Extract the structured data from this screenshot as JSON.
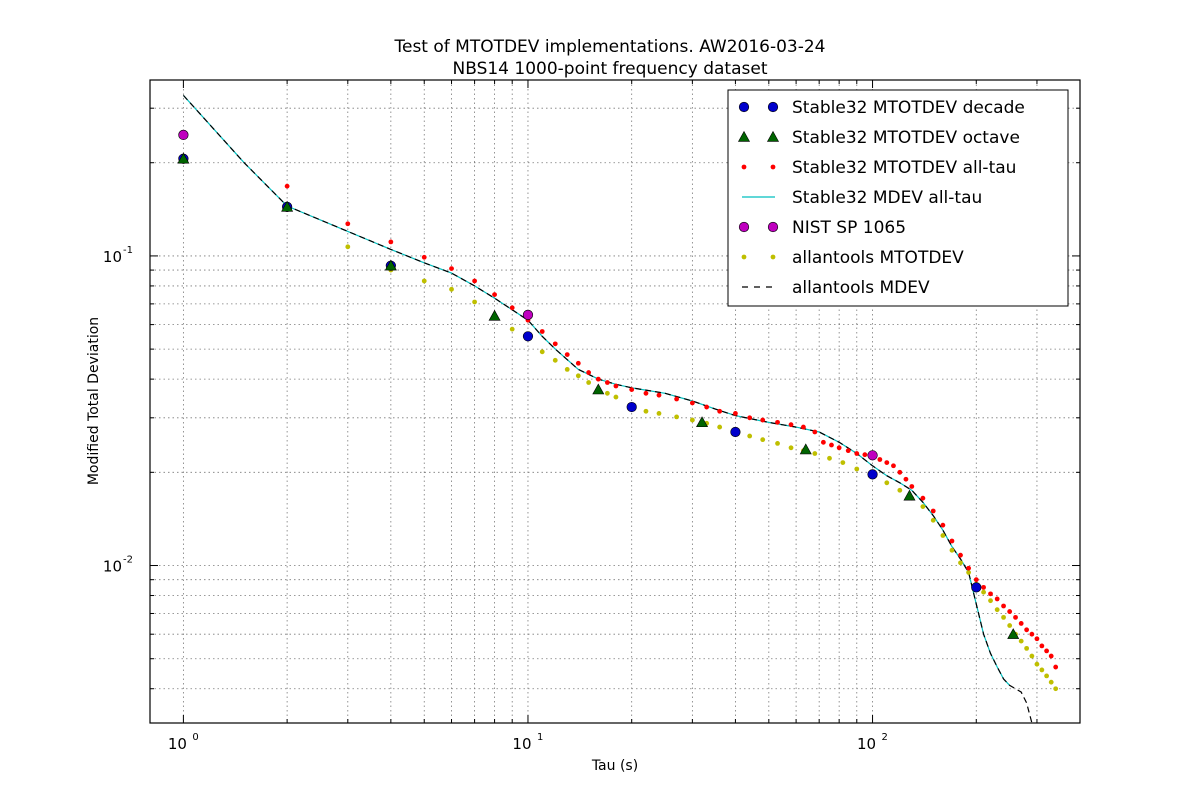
{
  "chart_data": {
    "type": "scatter",
    "title": "Test of MTOTDEV implementations. AW2016-03-24",
    "subtitle": "NBS14 1000-point frequency dataset",
    "xlabel": "Tau (s)",
    "ylabel": "Modified Total Deviation",
    "xscale": "log",
    "yscale": "log",
    "xlim": [
      0.8,
      400
    ],
    "ylim": [
      0.0031,
      0.37
    ],
    "grid": true,
    "legend_position": "top-right",
    "x_ticks": [
      {
        "base": "10",
        "exp": "0",
        "value": 1
      },
      {
        "base": "10",
        "exp": "1",
        "value": 10
      },
      {
        "base": "10",
        "exp": "2",
        "value": 100
      }
    ],
    "y_ticks": [
      {
        "base": "10",
        "exp": "-1",
        "value": 0.1
      },
      {
        "base": "10",
        "exp": "-2",
        "value": 0.01
      }
    ],
    "series": [
      {
        "name": "Stable32 MTOTDEV decade",
        "marker": "circle-large",
        "color": "#0000cc",
        "x": [
          1,
          2,
          4,
          10,
          20,
          40,
          100,
          200
        ],
        "y": [
          0.206,
          0.144,
          0.093,
          0.055,
          0.0325,
          0.027,
          0.0197,
          0.0085
        ]
      },
      {
        "name": "Stable32 MTOTDEV octave",
        "marker": "triangle",
        "color": "#006400",
        "x": [
          1,
          2,
          4,
          8,
          16,
          32,
          64,
          128,
          256
        ],
        "y": [
          0.206,
          0.144,
          0.093,
          0.064,
          0.037,
          0.029,
          0.0237,
          0.0168,
          0.006
        ]
      },
      {
        "name": "Stable32 MTOTDEV all-tau",
        "marker": "dot",
        "color": "#ff0000",
        "x": [
          2,
          3,
          4,
          5,
          6,
          7,
          8,
          9,
          10,
          11,
          12,
          13,
          14,
          15,
          16,
          17,
          18,
          20,
          22,
          24,
          27,
          30,
          33,
          36,
          40,
          44,
          48,
          53,
          58,
          63,
          68,
          72,
          76,
          80,
          85,
          90,
          95,
          100,
          105,
          110,
          115,
          120,
          125,
          130,
          140,
          150,
          160,
          170,
          180,
          190,
          200,
          210,
          220,
          230,
          240,
          250,
          260,
          270,
          280,
          290,
          300,
          310,
          320,
          330,
          340
        ],
        "y": [
          0.168,
          0.127,
          0.111,
          0.099,
          0.091,
          0.083,
          0.075,
          0.068,
          0.062,
          0.057,
          0.052,
          0.048,
          0.045,
          0.042,
          0.04,
          0.039,
          0.038,
          0.037,
          0.036,
          0.0355,
          0.0345,
          0.0335,
          0.0325,
          0.0315,
          0.031,
          0.03,
          0.0295,
          0.029,
          0.0285,
          0.028,
          0.027,
          0.025,
          0.0245,
          0.024,
          0.0235,
          0.023,
          0.0228,
          0.0225,
          0.022,
          0.0215,
          0.021,
          0.02,
          0.019,
          0.018,
          0.0165,
          0.015,
          0.0135,
          0.012,
          0.0108,
          0.0098,
          0.009,
          0.0085,
          0.0081,
          0.0078,
          0.0074,
          0.0071,
          0.0068,
          0.0065,
          0.0062,
          0.006,
          0.0058,
          0.0055,
          0.0053,
          0.0051,
          0.0047
        ]
      },
      {
        "name": "Stable32 MDEV all-tau",
        "marker": "line",
        "color": "#00bfbf",
        "x": [
          1,
          1.5,
          2,
          3,
          4,
          5,
          6,
          7,
          8,
          9,
          10,
          11,
          12,
          14,
          16,
          18,
          20,
          25,
          30,
          35,
          40,
          50,
          60,
          70,
          80,
          90,
          100,
          110,
          120,
          130,
          140,
          150,
          160,
          170,
          180,
          190,
          200,
          210,
          220,
          230,
          240,
          250
        ],
        "y": [
          0.33,
          0.2,
          0.145,
          0.12,
          0.105,
          0.095,
          0.088,
          0.08,
          0.073,
          0.067,
          0.062,
          0.055,
          0.05,
          0.043,
          0.04,
          0.0385,
          0.0375,
          0.036,
          0.034,
          0.032,
          0.0305,
          0.029,
          0.028,
          0.027,
          0.025,
          0.023,
          0.021,
          0.0195,
          0.0185,
          0.0175,
          0.016,
          0.0145,
          0.013,
          0.0115,
          0.0105,
          0.0095,
          0.0075,
          0.006,
          0.0052,
          0.0047,
          0.0043,
          0.0041
        ]
      },
      {
        "name": "NIST SP 1065",
        "marker": "circle-large",
        "color": "#bf00bf",
        "x": [
          1,
          10,
          100
        ],
        "y": [
          0.246,
          0.0645,
          0.0227
        ]
      },
      {
        "name": "allantools MTOTDEV",
        "marker": "dot",
        "color": "#bfbf00",
        "x": [
          1,
          2,
          3,
          4,
          5,
          6,
          7,
          8,
          9,
          10,
          11,
          12,
          13,
          14,
          15,
          16,
          17,
          18,
          20,
          22,
          24,
          27,
          30,
          33,
          36,
          40,
          44,
          48,
          53,
          58,
          63,
          68,
          75,
          82,
          90,
          100,
          110,
          120,
          130,
          140,
          150,
          160,
          170,
          180,
          190,
          200,
          210,
          220,
          230,
          240,
          250,
          260,
          270,
          280,
          290,
          300,
          310,
          320,
          330,
          340
        ],
        "y": [
          0.206,
          0.144,
          0.107,
          0.09,
          0.083,
          0.078,
          0.071,
          0.064,
          0.058,
          0.054,
          0.049,
          0.046,
          0.043,
          0.041,
          0.039,
          0.037,
          0.036,
          0.035,
          0.033,
          0.0315,
          0.031,
          0.0302,
          0.0295,
          0.0288,
          0.028,
          0.027,
          0.0262,
          0.0255,
          0.0248,
          0.024,
          0.0235,
          0.023,
          0.0222,
          0.0215,
          0.0205,
          0.0195,
          0.0185,
          0.0175,
          0.0165,
          0.0155,
          0.014,
          0.0125,
          0.0112,
          0.0102,
          0.0095,
          0.0087,
          0.0082,
          0.0077,
          0.0072,
          0.0068,
          0.0064,
          0.006,
          0.0057,
          0.0054,
          0.0051,
          0.0048,
          0.0046,
          0.0044,
          0.0042,
          0.004
        ]
      },
      {
        "name": "allantools MDEV",
        "marker": "dashed-line",
        "color": "#000000",
        "x": [
          1,
          1.5,
          2,
          3,
          4,
          5,
          6,
          7,
          8,
          9,
          10,
          11,
          12,
          14,
          16,
          18,
          20,
          25,
          30,
          35,
          40,
          50,
          60,
          70,
          80,
          90,
          100,
          110,
          120,
          130,
          140,
          150,
          160,
          170,
          180,
          190,
          200,
          210,
          220,
          230,
          240,
          250,
          270,
          280,
          290
        ],
        "y": [
          0.33,
          0.2,
          0.145,
          0.12,
          0.105,
          0.095,
          0.088,
          0.08,
          0.073,
          0.067,
          0.062,
          0.055,
          0.05,
          0.043,
          0.04,
          0.0385,
          0.0375,
          0.036,
          0.034,
          0.032,
          0.0305,
          0.029,
          0.028,
          0.027,
          0.025,
          0.023,
          0.021,
          0.0195,
          0.0185,
          0.0175,
          0.016,
          0.0145,
          0.013,
          0.0115,
          0.0105,
          0.0095,
          0.0075,
          0.006,
          0.0052,
          0.0047,
          0.0043,
          0.0041,
          0.0039,
          0.0036,
          0.0031
        ]
      }
    ]
  }
}
